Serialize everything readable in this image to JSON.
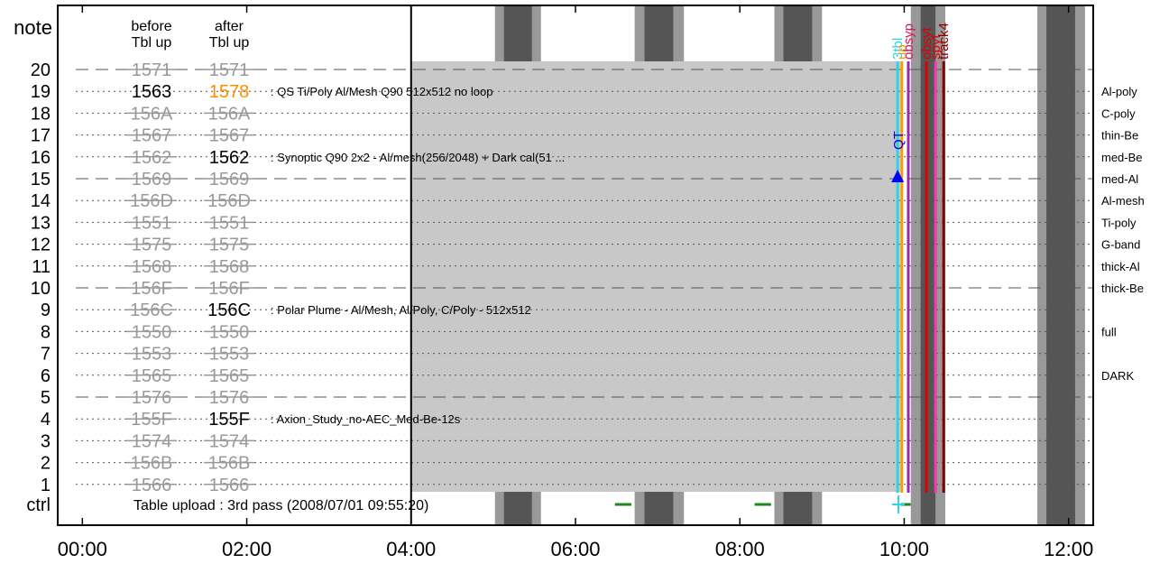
{
  "chart_data": {
    "type": "timeline",
    "row_axis_label": "note",
    "ctrl_label": "ctrl",
    "column_headers": {
      "before": [
        "before",
        "Tbl up"
      ],
      "after": [
        "after",
        "Tbl up"
      ]
    },
    "x_tick_labels": [
      "00:00",
      "02:00",
      "04:00",
      "06:00",
      "08:00",
      "10:00",
      "12:00"
    ],
    "x_range_hours": [
      -0.3,
      12.3
    ],
    "rows": [
      {
        "n": 20,
        "before": "1571",
        "after": "1571",
        "desc": "",
        "after_style": "strike",
        "line": "dash"
      },
      {
        "n": 19,
        "before": "1563",
        "after": "1578",
        "desc": ": QS Ti/Poly Al/Mesh  Q90 512x512 no loop",
        "before_style": "active",
        "after_style": "highlight",
        "line": "dot"
      },
      {
        "n": 18,
        "before": "156A",
        "after": "156A",
        "desc": "",
        "after_style": "strike",
        "line": "dot"
      },
      {
        "n": 17,
        "before": "1567",
        "after": "1567",
        "desc": "",
        "after_style": "strike",
        "line": "dot"
      },
      {
        "n": 16,
        "before": "1562",
        "after": "1562",
        "desc": ": Synoptic Q90 2x2 - Al/mesh(256/2048) + Dark cal(51 ...",
        "after_style": "active",
        "line": "dot"
      },
      {
        "n": 15,
        "before": "1569",
        "after": "1569",
        "desc": "",
        "after_style": "strike",
        "line": "dash"
      },
      {
        "n": 14,
        "before": "156D",
        "after": "156D",
        "desc": "",
        "after_style": "strike",
        "line": "dot"
      },
      {
        "n": 13,
        "before": "1551",
        "after": "1551",
        "desc": "",
        "after_style": "strike",
        "line": "dot"
      },
      {
        "n": 12,
        "before": "1575",
        "after": "1575",
        "desc": "",
        "after_style": "strike",
        "line": "dot"
      },
      {
        "n": 11,
        "before": "1568",
        "after": "1568",
        "desc": "",
        "after_style": "strike",
        "line": "dot"
      },
      {
        "n": 10,
        "before": "156F",
        "after": "156F",
        "desc": "",
        "after_style": "strike",
        "line": "dash"
      },
      {
        "n": 9,
        "before": "156C",
        "after": "156C",
        "desc": ": Polar Plume - Al/Mesh, Al/Poly, C/Poly - 512x512",
        "after_style": "active",
        "line": "dot"
      },
      {
        "n": 8,
        "before": "1550",
        "after": "1550",
        "desc": "",
        "after_style": "strike",
        "line": "dot"
      },
      {
        "n": 7,
        "before": "1553",
        "after": "1553",
        "desc": "",
        "after_style": "strike",
        "line": "dot"
      },
      {
        "n": 6,
        "before": "1565",
        "after": "1565",
        "desc": "",
        "after_style": "strike",
        "line": "dot"
      },
      {
        "n": 5,
        "before": "1576",
        "after": "1576",
        "desc": "",
        "after_style": "strike",
        "line": "dash"
      },
      {
        "n": 4,
        "before": "155F",
        "after": "155F",
        "desc": ": Axion_Study_no-AEC_Med-Be-12s",
        "after_style": "active",
        "line": "dot"
      },
      {
        "n": 3,
        "before": "1574",
        "after": "1574",
        "desc": "",
        "after_style": "strike",
        "line": "dot"
      },
      {
        "n": 2,
        "before": "156B",
        "after": "156B",
        "desc": "",
        "after_style": "strike",
        "line": "dot"
      },
      {
        "n": 1,
        "before": "1566",
        "after": "1566",
        "desc": "",
        "after_style": "strike",
        "line": "dot"
      }
    ],
    "filters": [
      {
        "row": 19,
        "label": "Al-poly"
      },
      {
        "row": 18,
        "label": "C-poly"
      },
      {
        "row": 17,
        "label": "thin-Be"
      },
      {
        "row": 16,
        "label": "med-Be"
      },
      {
        "row": 15,
        "label": "med-Al"
      },
      {
        "row": 14,
        "label": "Al-mesh"
      },
      {
        "row": 13,
        "label": "Ti-poly"
      },
      {
        "row": 12,
        "label": "G-band"
      },
      {
        "row": 11,
        "label": "thick-Al"
      },
      {
        "row": 10,
        "label": "thick-Be"
      },
      {
        "row": 8,
        "label": "full"
      },
      {
        "row": 6,
        "label": "DARK"
      }
    ],
    "ctrl_note": "Table upload : 3rd pass (2008/07/01 09:55:20)",
    "grey_block_hours": [
      4.0,
      9.95
    ],
    "now_line_hour": 4.0,
    "night_bands": [
      {
        "outer": [
          5.02,
          5.58
        ],
        "inner": [
          5.13,
          5.47
        ]
      },
      {
        "outer": [
          6.72,
          7.32
        ],
        "inner": [
          6.84,
          7.19
        ]
      },
      {
        "outer": [
          8.42,
          9.0
        ],
        "inner": [
          8.53,
          8.88
        ]
      },
      {
        "outer": [
          10.08,
          10.5
        ],
        "inner": [
          10.2,
          10.38
        ]
      },
      {
        "outer": [
          11.62,
          12.2
        ],
        "inner": [
          11.73,
          12.08
        ]
      }
    ],
    "green_marks": [
      {
        "from": 6.48,
        "to": 6.68
      },
      {
        "from": 8.18,
        "to": 8.38
      },
      {
        "from": 9.96,
        "to": 10.08
      }
    ],
    "ctrl_cursor_hour": 9.93,
    "vlines": [
      {
        "hour": 9.92,
        "color": "#2dd4e6",
        "label": "3tbl",
        "label_color": "#2dd4e6"
      },
      {
        "hour": 9.97,
        "color": "#ff9900",
        "label": "up",
        "label_color": "#ff9900"
      },
      {
        "hour": 10.05,
        "color": "#9c27b0",
        "label": "obsyp",
        "label_color": "#d81b60"
      },
      {
        "hour": 10.27,
        "color": "#e00000",
        "label": "obsyt",
        "label_color": "#e00000"
      },
      {
        "hour": 10.38,
        "color": "#ff33aa",
        "label": "spyt",
        "label_color": "#e00000"
      },
      {
        "hour": 10.48,
        "color": "#8b0000",
        "label": "track4",
        "label_color": "#8b0000"
      }
    ],
    "qt_label": "QT",
    "qt_hour": 9.92,
    "qt_row": 15
  }
}
